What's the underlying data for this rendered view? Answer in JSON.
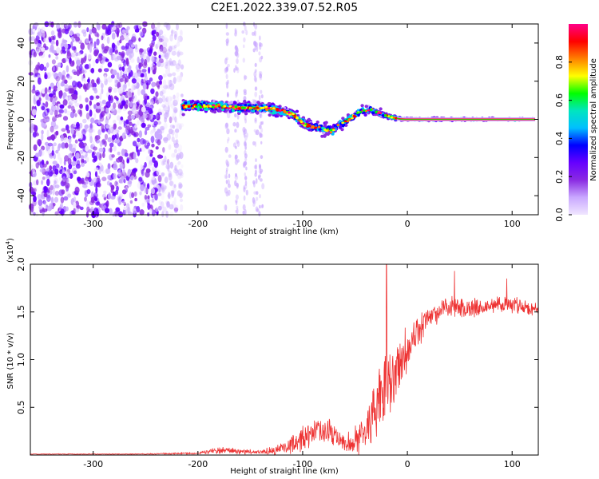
{
  "title": "C2E1.2022.339.07.52.R05",
  "chart_data": [
    {
      "type": "heatmap",
      "name": "spectrogram",
      "xlabel": "Height of straight line (km)",
      "ylabel": "Frequency (Hz)",
      "xlim": [
        -360,
        125
      ],
      "ylim": [
        -50,
        50
      ],
      "xticks": [
        -300,
        -200,
        -100,
        0,
        100
      ],
      "yticks": [
        -40,
        -20,
        0,
        20,
        40
      ],
      "colorbar": {
        "label": "Normalized spectral amplitude",
        "range": [
          0,
          1
        ],
        "ticks": [
          0.0,
          0.2,
          0.4,
          0.6,
          0.8
        ],
        "colormap": [
          "#f0e6ff",
          "#c9a8ff",
          "#8a2be2",
          "#6600ff",
          "#0000ff",
          "#00bfff",
          "#00e5c0",
          "#00ff00",
          "#ffff00",
          "#ff8000",
          "#ff0000",
          "#ff0088"
        ]
      },
      "noise_region": {
        "x_range": [
          -360,
          -215
        ],
        "dense_until": -235
      },
      "faint_columns": [
        -172,
        -163,
        -155,
        -145,
        -140
      ],
      "ridge": {
        "x": [
          -215,
          -200,
          -180,
          -160,
          -140,
          -125,
          -110,
          -100,
          -90,
          -80,
          -72,
          -65,
          -55,
          -45,
          -35,
          -25,
          -15,
          -5,
          0,
          125
        ],
        "freq": [
          7,
          7,
          7,
          6,
          6,
          5,
          3,
          -2,
          -4,
          -5,
          -6,
          -3,
          0,
          4,
          5,
          3,
          1,
          0,
          0,
          0
        ],
        "spread": [
          5,
          4,
          4,
          4,
          4,
          4,
          4,
          4,
          4,
          5,
          5,
          4,
          4,
          4,
          3,
          3,
          2,
          1,
          1,
          1
        ]
      }
    },
    {
      "type": "line",
      "name": "snr",
      "xlabel": "Height of straight line (km)",
      "ylabel": "SNR (10 * v/v)",
      "yscale_label": "(x10",
      "yscale_exponent": "4",
      "yscale_suffix": ")",
      "xlim": [
        -360,
        125
      ],
      "ylim": [
        0,
        2.0
      ],
      "xticks": [
        -300,
        -200,
        -100,
        0,
        100
      ],
      "yticks": [
        0.5,
        1.0,
        1.5,
        2.0
      ],
      "ytick_labels": [
        "0.5",
        "1.0",
        "1.5",
        "2.0"
      ],
      "color": "#ee3333",
      "envelope": {
        "x": [
          -360,
          -250,
          -200,
          -180,
          -140,
          -120,
          -100,
          -90,
          -75,
          -60,
          -50,
          -40,
          -30,
          -20,
          -10,
          0,
          10,
          20,
          40,
          60,
          80,
          100,
          125
        ],
        "mean": [
          0.01,
          0.01,
          0.02,
          0.05,
          0.03,
          0.07,
          0.18,
          0.25,
          0.26,
          0.12,
          0.15,
          0.25,
          0.5,
          0.7,
          0.9,
          1.15,
          1.3,
          1.45,
          1.55,
          1.55,
          1.56,
          1.58,
          1.52
        ],
        "noise": [
          0.003,
          0.004,
          0.01,
          0.03,
          0.02,
          0.05,
          0.12,
          0.12,
          0.12,
          0.08,
          0.12,
          0.2,
          0.3,
          0.35,
          0.3,
          0.2,
          0.15,
          0.12,
          0.1,
          0.09,
          0.08,
          0.08,
          0.06
        ]
      },
      "peaks": [
        {
          "x": -20,
          "y": 2.0
        },
        {
          "x": 45,
          "y": 1.93
        },
        {
          "x": 95,
          "y": 1.85
        }
      ]
    }
  ]
}
